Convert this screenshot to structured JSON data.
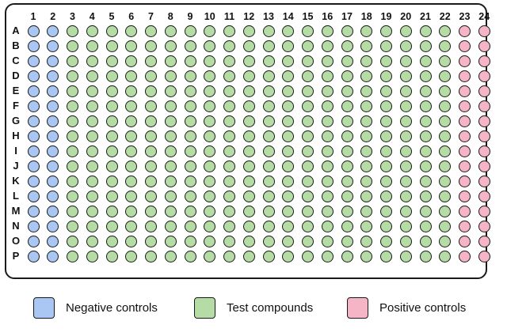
{
  "plate": {
    "columns": [
      "1",
      "2",
      "3",
      "4",
      "5",
      "6",
      "7",
      "8",
      "9",
      "10",
      "11",
      "12",
      "13",
      "14",
      "15",
      "16",
      "17",
      "18",
      "19",
      "20",
      "21",
      "22",
      "23",
      "24"
    ],
    "rows": [
      "A",
      "B",
      "C",
      "D",
      "E",
      "F",
      "G",
      "H",
      "I",
      "J",
      "K",
      "L",
      "M",
      "N",
      "O",
      "P"
    ],
    "column_groups": [
      {
        "group": "negative",
        "columns": [
          1,
          2
        ]
      },
      {
        "group": "test",
        "columns": [
          3,
          4,
          5,
          6,
          7,
          8,
          9,
          10,
          11,
          12,
          13,
          14,
          15,
          16,
          17,
          18,
          19,
          20,
          21,
          22
        ]
      },
      {
        "group": "positive",
        "columns": [
          23,
          24
        ]
      }
    ]
  },
  "colors": {
    "negative": "#a9c7f2",
    "test": "#b6dca5",
    "positive": "#f6b5c6",
    "outline": "#1a1a1a"
  },
  "legend": {
    "negative": {
      "label": "Negative controls",
      "icon": "blue-swatch"
    },
    "test": {
      "label": "Test compounds",
      "icon": "green-swatch"
    },
    "positive": {
      "label": "Positive controls",
      "icon": "pink-swatch"
    }
  }
}
